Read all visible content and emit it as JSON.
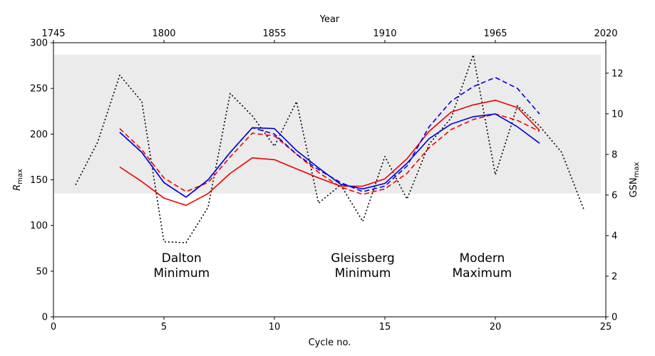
{
  "chart_data": {
    "type": "line",
    "xlabel": "Cycle no.",
    "ylabel_left": "R",
    "ylabel_left_sub": "max",
    "ylabel_right": "GSN",
    "ylabel_right_sub": "max",
    "top_axis_label": "Year",
    "xlim": [
      0,
      25
    ],
    "ylim_left": [
      0,
      300
    ],
    "ylim_right": [
      0,
      13.5
    ],
    "x_ticks": [
      "0",
      "5",
      "10",
      "15",
      "20",
      "25"
    ],
    "x_tick_values": [
      0,
      5,
      10,
      15,
      20,
      25
    ],
    "y_left_ticks": [
      "0",
      "50",
      "100",
      "150",
      "200",
      "250",
      "300"
    ],
    "y_left_tick_values": [
      0,
      50,
      100,
      150,
      200,
      250,
      300
    ],
    "y_right_ticks": [
      "0",
      "2",
      "4",
      "6",
      "8",
      "10",
      "12"
    ],
    "y_right_tick_values": [
      0,
      2,
      4,
      6,
      8,
      10,
      12
    ],
    "top_ticks": [
      "1745",
      "1800",
      "1855",
      "1910",
      "1965",
      "2020"
    ],
    "top_tick_values": [
      0,
      5,
      10,
      15,
      20,
      25
    ],
    "shaded_band_left": [
      135,
      287
    ],
    "annotations": [
      {
        "lines": [
          "Dalton",
          "Minimum"
        ],
        "x": 5.8,
        "y": 60
      },
      {
        "lines": [
          "Gleissberg",
          "Minimum"
        ],
        "x": 14.0,
        "y": 60
      },
      {
        "lines": [
          "Modern",
          "Maximum"
        ],
        "x": 19.4,
        "y": 60
      }
    ],
    "series": [
      {
        "name": "GSN max (dotted black)",
        "axis": "right",
        "color": "#000000",
        "style": "dotted",
        "x": [
          1,
          2,
          3,
          4,
          5,
          6,
          7,
          8,
          9,
          10,
          11,
          12,
          13,
          14,
          15,
          16,
          17,
          18,
          19,
          20,
          21,
          22,
          23,
          24
        ],
        "values": [
          6.5,
          8.6,
          11.9,
          10.6,
          3.7,
          3.65,
          5.4,
          11.0,
          9.9,
          8.4,
          10.6,
          5.6,
          6.5,
          4.7,
          7.9,
          5.8,
          8.5,
          9.8,
          12.9,
          7.0,
          10.4,
          9.4,
          8.1,
          5.3
        ]
      },
      {
        "name": "Red solid",
        "axis": "left",
        "color": "#ee0000",
        "style": "solid",
        "x": [
          3,
          4,
          5,
          6,
          7,
          8,
          9,
          10,
          11,
          12,
          13,
          14,
          15,
          16,
          17,
          18,
          19,
          20,
          21,
          22
        ],
        "values": [
          164,
          148,
          130,
          122,
          135,
          157,
          174,
          172,
          162,
          152,
          143,
          143,
          151,
          173,
          203,
          224,
          232,
          237,
          229,
          204
        ]
      },
      {
        "name": "Red dashed",
        "axis": "left",
        "color": "#ee0000",
        "style": "dashed",
        "x": [
          3,
          4,
          5,
          6,
          7,
          8,
          9,
          10,
          11,
          12,
          13,
          14,
          15,
          16,
          17,
          18,
          19,
          20,
          21,
          22
        ],
        "values": [
          206,
          183,
          152,
          137,
          147,
          175,
          201,
          198,
          178,
          158,
          142,
          134,
          140,
          157,
          185,
          205,
          216,
          222,
          215,
          203
        ]
      },
      {
        "name": "Blue solid",
        "axis": "left",
        "color": "#0000dd",
        "style": "solid",
        "x": [
          3,
          4,
          5,
          6,
          7,
          8,
          9,
          10,
          11,
          12,
          13,
          14,
          15,
          16,
          17,
          18,
          19,
          20,
          21,
          22
        ],
        "values": [
          202,
          180,
          147,
          131,
          150,
          180,
          207,
          206,
          182,
          163,
          145,
          140,
          146,
          168,
          195,
          211,
          219,
          222,
          208,
          190
        ]
      },
      {
        "name": "Blue dashed",
        "axis": "left",
        "color": "#0000dd",
        "style": "dashed",
        "x": [
          3,
          4,
          5,
          6,
          7,
          8,
          9,
          10,
          11,
          12,
          13,
          14,
          15,
          16,
          17,
          18,
          19,
          20,
          21,
          22
        ],
        "values": [
          202,
          180,
          147,
          131,
          150,
          180,
          207,
          200,
          178,
          161,
          147,
          137,
          143,
          165,
          208,
          236,
          252,
          262,
          250,
          222
        ]
      }
    ]
  }
}
